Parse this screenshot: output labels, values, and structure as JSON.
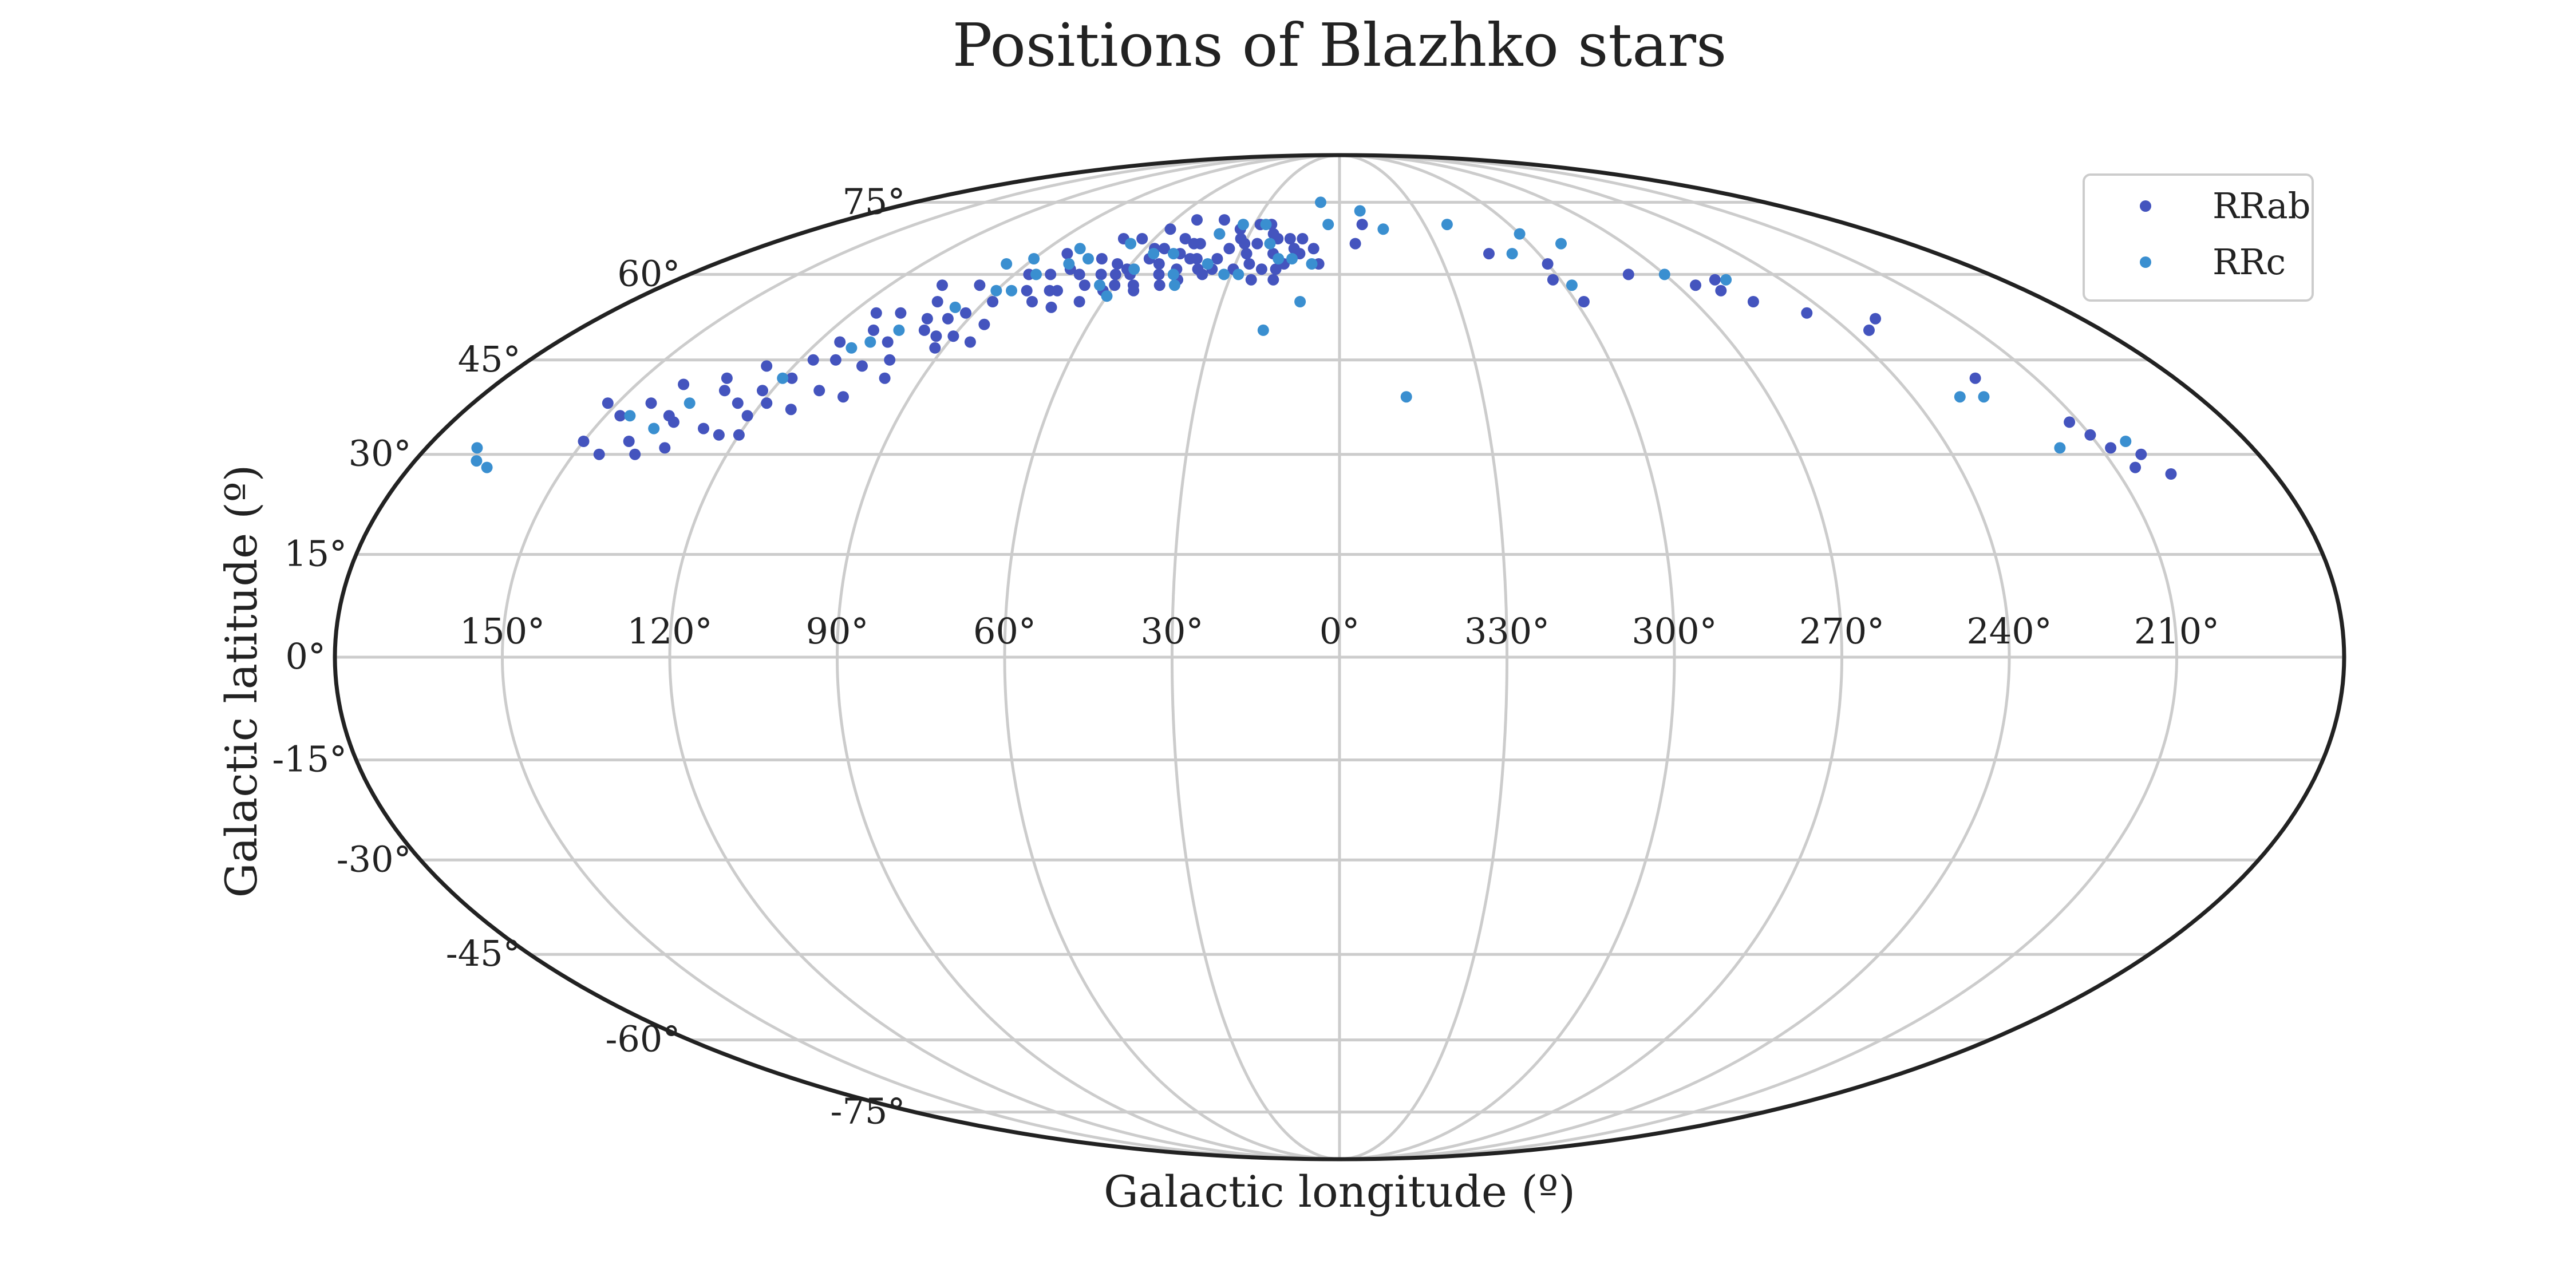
{
  "chart_data": {
    "type": "scatter",
    "projection": "mollweide",
    "title": "Positions of Blazhko stars",
    "xlabel": "Galactic longitude (º)",
    "ylabel": "Galactic latitude (º)",
    "grid": true,
    "legend_position": "top-right",
    "colors": {
      "RRab": "#4454be",
      "RRc": "#3a8fd0"
    },
    "lon_ticks": [
      150,
      120,
      90,
      60,
      30,
      0,
      330,
      300,
      270,
      240,
      210
    ],
    "lon_tick_labels": [
      "150°",
      "120°",
      "90°",
      "60°",
      "30°",
      "0°",
      "330°",
      "300°",
      "270°",
      "240°",
      "210°"
    ],
    "lat_ticks": [
      75,
      60,
      45,
      30,
      15,
      0,
      -15,
      -30,
      -45,
      -60,
      -75
    ],
    "lat_tick_labels": [
      "75°",
      "60°",
      "45°",
      "30°",
      "15°",
      "0°",
      "-15°",
      "-30°",
      "-45°",
      "-60°",
      "-75°"
    ],
    "series": [
      {
        "name": "RRab",
        "points": [
          [
            130,
            40
          ],
          [
            132,
            42
          ],
          [
            135,
            35
          ],
          [
            138,
            30
          ],
          [
            141,
            32
          ],
          [
            143,
            38
          ],
          [
            145,
            30
          ],
          [
            147,
            36
          ],
          [
            133,
            31
          ],
          [
            150,
            32
          ],
          [
            152,
            38
          ],
          [
            126,
            44
          ],
          [
            122,
            40
          ],
          [
            118,
            42
          ],
          [
            115,
            48
          ],
          [
            117,
            45
          ],
          [
            121,
            36
          ],
          [
            124,
            33
          ],
          [
            128,
            34
          ],
          [
            119,
            38
          ],
          [
            110,
            50
          ],
          [
            112,
            45
          ],
          [
            108,
            53
          ],
          [
            104,
            48
          ],
          [
            102,
            55
          ],
          [
            100,
            45
          ],
          [
            98,
            50
          ],
          [
            95,
            52
          ],
          [
            92,
            47
          ],
          [
            90,
            49
          ],
          [
            88,
            55
          ],
          [
            85,
            51
          ],
          [
            82,
            57
          ],
          [
            80,
            60
          ],
          [
            78,
            55
          ],
          [
            76,
            61
          ],
          [
            74,
            57
          ],
          [
            72,
            60
          ],
          [
            70,
            63
          ],
          [
            68,
            58
          ],
          [
            66,
            60
          ],
          [
            64,
            62
          ],
          [
            62,
            57
          ],
          [
            60,
            61
          ],
          [
            58,
            60
          ],
          [
            56,
            63
          ],
          [
            54,
            65
          ],
          [
            52,
            62
          ],
          [
            50,
            60
          ],
          [
            48,
            64
          ],
          [
            46,
            61
          ],
          [
            44,
            66
          ],
          [
            42,
            63
          ],
          [
            40,
            68
          ],
          [
            38,
            60
          ],
          [
            36,
            63
          ],
          [
            34,
            65
          ],
          [
            32,
            67
          ],
          [
            30,
            61
          ],
          [
            28,
            64
          ],
          [
            26,
            66
          ],
          [
            24,
            70
          ],
          [
            22,
            68
          ],
          [
            20,
            64
          ],
          [
            18,
            59
          ],
          [
            16,
            62
          ],
          [
            14,
            65
          ],
          [
            12,
            67
          ],
          [
            8,
            65
          ],
          [
            6,
            62
          ],
          [
            60,
            58
          ],
          [
            62,
            60
          ],
          [
            55,
            58
          ],
          [
            48,
            58
          ],
          [
            44,
            59
          ],
          [
            40,
            61
          ],
          [
            46,
            66
          ],
          [
            50,
            67
          ],
          [
            57,
            65
          ],
          [
            64,
            67
          ],
          [
            70,
            67
          ],
          [
            82,
            64
          ],
          [
            96,
            58
          ],
          [
            106,
            58
          ],
          [
            114,
            53
          ],
          [
            100,
            52
          ],
          [
            92,
            53
          ],
          [
            86,
            60
          ],
          [
            30,
            66
          ],
          [
            26,
            62
          ],
          [
            22,
            61
          ],
          [
            34,
            69
          ],
          [
            42,
            71
          ],
          [
            20,
            67
          ],
          [
            16,
            67
          ],
          [
            12,
            64
          ],
          [
            66,
            55
          ],
          [
            72,
            54
          ],
          [
            76,
            57
          ],
          [
            85,
            48
          ],
          [
            94,
            49
          ],
          [
            105,
            44
          ],
          [
            110,
            40
          ],
          [
            125,
            38
          ],
          [
            140,
            41
          ],
          [
            137,
            36
          ],
          [
            120,
            33
          ],
          [
            113,
            37
          ],
          [
            104,
            39
          ],
          [
            98,
            42
          ],
          [
            54,
            57
          ],
          [
            44,
            63
          ],
          [
            36,
            61
          ],
          [
            24,
            59
          ],
          [
            18,
            61
          ],
          [
            28,
            70
          ],
          [
            52,
            71
          ],
          [
            58,
            69
          ],
          [
            355,
            66
          ],
          [
            352,
            70
          ],
          [
            315,
            64
          ],
          [
            300,
            62
          ],
          [
            302,
            59
          ],
          [
            298,
            55
          ],
          [
            280,
            60
          ],
          [
            265,
            58
          ],
          [
            258,
            59
          ],
          [
            255,
            55
          ],
          [
            245,
            53
          ],
          [
            235,
            50
          ],
          [
            230,
            52
          ],
          [
            223,
            42
          ],
          [
            212,
            35
          ],
          [
            210,
            33
          ],
          [
            208,
            31
          ],
          [
            206,
            28
          ],
          [
            203,
            30
          ],
          [
            200,
            27
          ],
          [
            260,
            57
          ]
        ]
      },
      {
        "name": "RRc",
        "points": [
          [
            165,
            28
          ],
          [
            168,
            29
          ],
          [
            170,
            31
          ],
          [
            145,
            36
          ],
          [
            138,
            34
          ],
          [
            135,
            38
          ],
          [
            120,
            42
          ],
          [
            108,
            48
          ],
          [
            104,
            50
          ],
          [
            96,
            54
          ],
          [
            90,
            57
          ],
          [
            84,
            60
          ],
          [
            78,
            62
          ],
          [
            66,
            66
          ],
          [
            58,
            61
          ],
          [
            56,
            64
          ],
          [
            50,
            64
          ],
          [
            46,
            60
          ],
          [
            44,
            58
          ],
          [
            38,
            62
          ],
          [
            34,
            70
          ],
          [
            26,
            70
          ],
          [
            22,
            66
          ],
          [
            18,
            63
          ],
          [
            14,
            63
          ],
          [
            8,
            62
          ],
          [
            4,
            70
          ],
          [
            32,
            60
          ],
          [
            10,
            55
          ],
          [
            18,
            50
          ],
          [
            40,
            68
          ],
          [
            64,
            58
          ],
          [
            74,
            63
          ],
          [
            90,
            63
          ],
          [
            345,
            69
          ],
          [
            322,
            70
          ],
          [
            308,
            64
          ],
          [
            300,
            68
          ],
          [
            298,
            58
          ],
          [
            290,
            66
          ],
          [
            270,
            60
          ],
          [
            255,
            59
          ],
          [
            230,
            39
          ],
          [
            225,
            39
          ],
          [
            218,
            31
          ],
          [
            204,
            32
          ],
          [
            346,
            39
          ],
          [
            8,
            75
          ],
          [
            352,
            73
          ],
          [
            28,
            60
          ],
          [
            60,
            56
          ],
          [
            80,
            65
          ],
          [
            96,
            62
          ],
          [
            111,
            47
          ],
          [
            86,
            57
          ]
        ]
      }
    ]
  }
}
